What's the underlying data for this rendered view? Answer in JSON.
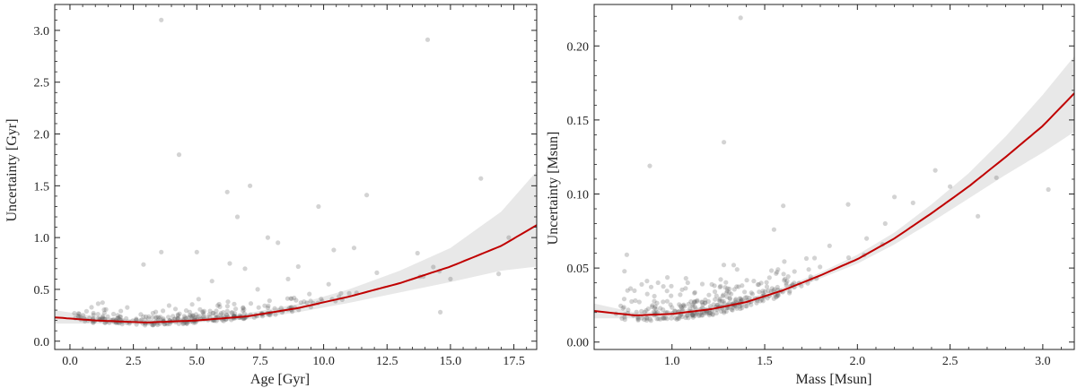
{
  "colors": {
    "points": "#606060",
    "fit_line": "#c00000",
    "band": "#d6d6d6",
    "axis": "#222222"
  },
  "chart_data": [
    {
      "type": "scatter",
      "xlabel": "Age [Gyr]",
      "ylabel": "Uncertainty [Gyr]",
      "xlim": [
        -0.6,
        18.4
      ],
      "ylim": [
        -0.08,
        3.25
      ],
      "xticks": [
        0.0,
        2.5,
        5.0,
        7.5,
        10.0,
        12.5,
        15.0,
        17.5
      ],
      "xtick_labels": [
        "0.0",
        "2.5",
        "5.0",
        "7.5",
        "10.0",
        "12.5",
        "15.0",
        "17.5"
      ],
      "yticks": [
        0.0,
        0.5,
        1.0,
        1.5,
        2.0,
        2.5,
        3.0
      ],
      "ytick_labels": [
        "0.0",
        "0.5",
        "1.0",
        "1.5",
        "2.0",
        "2.5",
        "3.0"
      ],
      "fit_curve": {
        "x": [
          -0.6,
          1,
          3,
          5,
          7,
          9,
          11,
          13,
          15,
          17,
          18.4
        ],
        "y": [
          0.23,
          0.2,
          0.18,
          0.2,
          0.24,
          0.32,
          0.43,
          0.56,
          0.72,
          0.92,
          1.12
        ]
      },
      "band_upper": [
        0.3,
        0.24,
        0.2,
        0.22,
        0.27,
        0.36,
        0.5,
        0.68,
        0.9,
        1.25,
        1.64
      ],
      "band_lower": [
        0.17,
        0.17,
        0.16,
        0.18,
        0.21,
        0.28,
        0.37,
        0.47,
        0.57,
        0.68,
        0.72
      ],
      "outliers": {
        "x": [
          3.6,
          14.1,
          4.3,
          6.2,
          6.6,
          7.1,
          11.7,
          16.2,
          9.8,
          7.8,
          6.3,
          8.2,
          10.4,
          11.2,
          13.7,
          17.3,
          16.9,
          14.6,
          15.0,
          5.0,
          3.6,
          6.9,
          9.0,
          12.1,
          8.6,
          2.9,
          10.2,
          7.4,
          5.6
        ],
        "y": [
          3.1,
          2.91,
          1.8,
          1.44,
          1.2,
          1.5,
          1.41,
          1.57,
          1.3,
          1.0,
          0.75,
          0.95,
          0.88,
          0.9,
          0.85,
          1.0,
          0.65,
          0.28,
          0.6,
          0.86,
          0.86,
          0.7,
          0.72,
          0.66,
          0.6,
          0.74,
          0.55,
          0.5,
          0.58
        ]
      },
      "cloud": {
        "n": 320,
        "x_center": 4.5,
        "x_spread": 3.2,
        "y_base": 0.17,
        "y_spread": 0.08
      }
    },
    {
      "type": "scatter",
      "xlabel": "Mass [Msun]",
      "ylabel": "Uncertainty [Msun]",
      "xlim": [
        0.58,
        3.17
      ],
      "ylim": [
        -0.005,
        0.228
      ],
      "xticks": [
        1.0,
        1.5,
        2.0,
        2.5,
        3.0
      ],
      "xtick_labels": [
        "1.0",
        "1.5",
        "2.0",
        "2.5",
        "3.0"
      ],
      "yticks": [
        0.0,
        0.05,
        0.1,
        0.15,
        0.2
      ],
      "ytick_labels": [
        "0.00",
        "0.05",
        "0.10",
        "0.15",
        "0.20"
      ],
      "fit_curve": {
        "x": [
          0.58,
          0.8,
          1.0,
          1.2,
          1.4,
          1.6,
          1.8,
          2.0,
          2.2,
          2.4,
          2.6,
          2.8,
          3.0,
          3.17
        ],
        "y": [
          0.021,
          0.018,
          0.019,
          0.022,
          0.027,
          0.035,
          0.045,
          0.056,
          0.07,
          0.087,
          0.105,
          0.125,
          0.146,
          0.168
        ]
      },
      "band_upper": [
        0.026,
        0.02,
        0.021,
        0.024,
        0.029,
        0.037,
        0.047,
        0.059,
        0.074,
        0.093,
        0.114,
        0.139,
        0.167,
        0.193
      ],
      "band_lower": [
        0.016,
        0.016,
        0.017,
        0.02,
        0.025,
        0.033,
        0.043,
        0.053,
        0.066,
        0.081,
        0.097,
        0.113,
        0.128,
        0.142
      ],
      "outliers": {
        "x": [
          1.37,
          0.88,
          1.28,
          2.42,
          2.65,
          3.03,
          2.2,
          2.75,
          1.95,
          1.6,
          1.55,
          2.3,
          2.05,
          1.85,
          2.5,
          2.15
        ],
        "y": [
          0.219,
          0.119,
          0.135,
          0.116,
          0.085,
          0.103,
          0.098,
          0.111,
          0.093,
          0.092,
          0.076,
          0.094,
          0.07,
          0.065,
          0.105,
          0.08
        ]
      },
      "cloud": {
        "n": 330,
        "x_center": 1.2,
        "x_spread": 0.28,
        "y_base": 0.018,
        "y_spread": 0.012
      }
    }
  ]
}
